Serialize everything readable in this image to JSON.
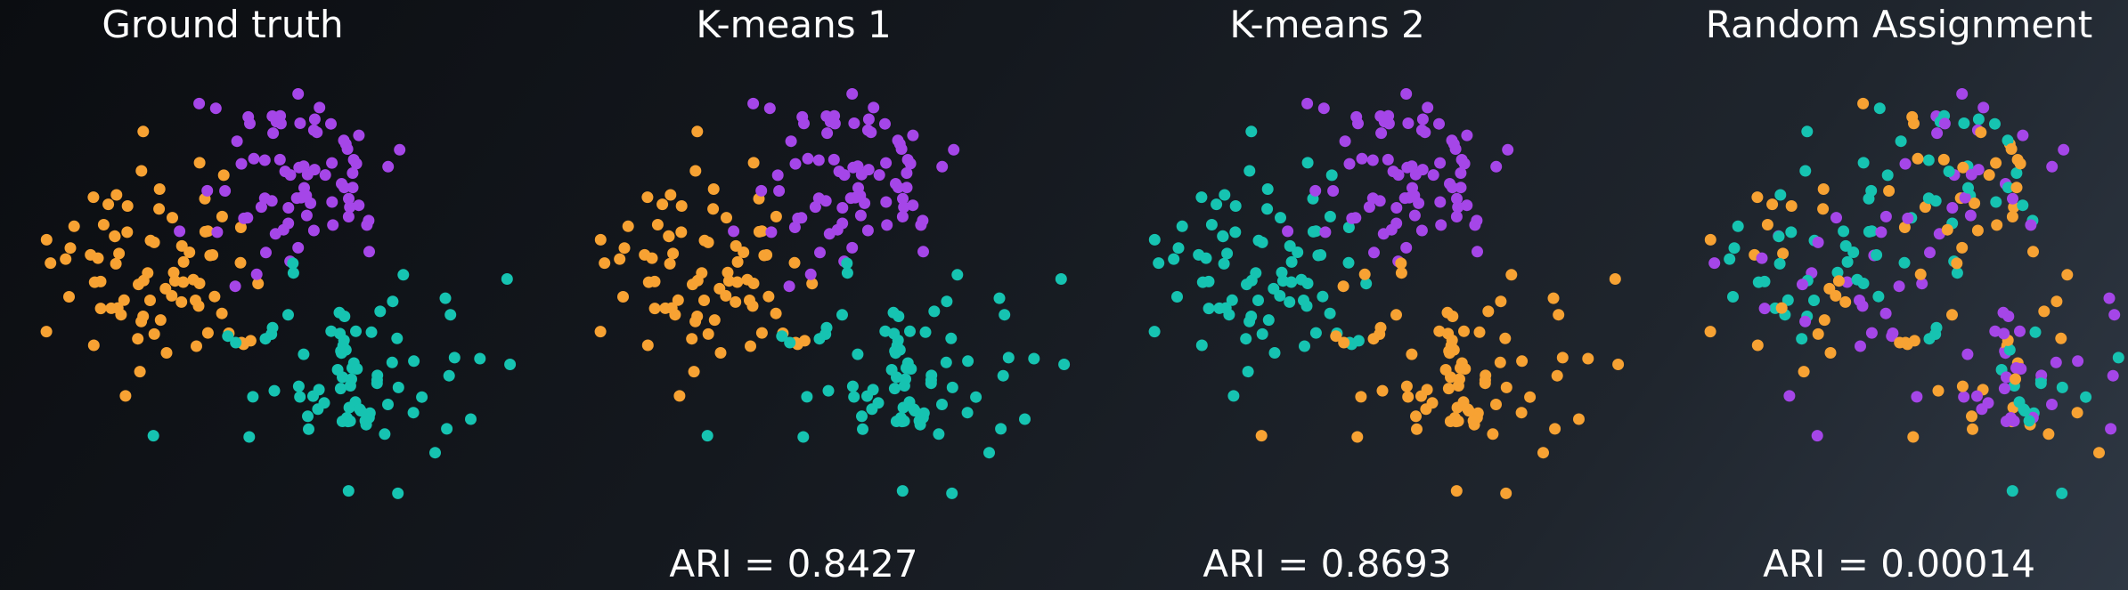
{
  "colors": {
    "A": "#f7a233",
    "B": "#a546e8",
    "C": "#16c3b1"
  },
  "chart_data": [
    {
      "type": "scatter",
      "title": "Ground truth",
      "ari_label": "",
      "clusters": [
        "A",
        "B",
        "C"
      ]
    },
    {
      "type": "scatter",
      "title": "K-means 1",
      "ari_label": "ARI = 0.8427",
      "clusters": [
        "A",
        "B",
        "C"
      ]
    },
    {
      "type": "scatter",
      "title": "K-means 2",
      "ari_label": "ARI = 0.8693",
      "clusters": [
        "C",
        "B",
        "A"
      ]
    },
    {
      "type": "scatter",
      "title": "Random Assignment",
      "ari_label": "ARI = 0.00014",
      "clusters": [
        "random",
        "random",
        "random"
      ]
    }
  ]
}
